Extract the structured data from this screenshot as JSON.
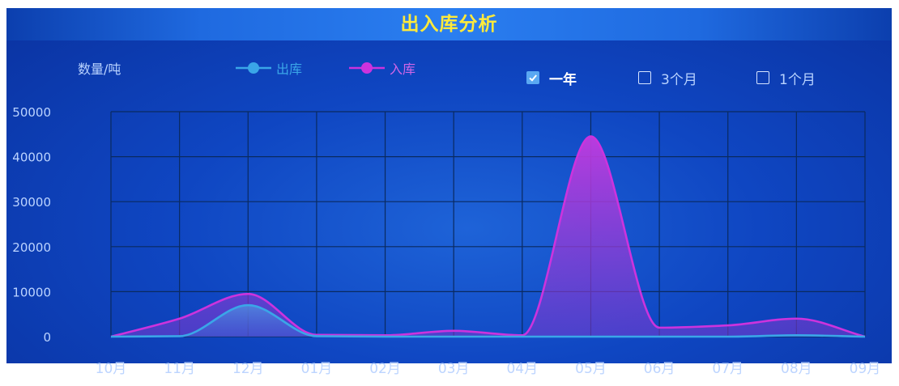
{
  "header": {
    "title": "出入库分析"
  },
  "range_options": [
    {
      "label": "一年",
      "checked": true
    },
    {
      "label": "3个月",
      "checked": false
    },
    {
      "label": "1个月",
      "checked": false
    }
  ],
  "colors": {
    "out": "#3aa6e8",
    "in": "#cc33dd",
    "grid": "#0a2a60",
    "axis_text": "#bcd4ff"
  },
  "chart_data": {
    "type": "area",
    "title": "出入库分析",
    "ylabel": "数量/吨",
    "xlabel": "",
    "categories": [
      "10月",
      "11月",
      "12月",
      "01月",
      "02月",
      "03月",
      "04月",
      "05月",
      "06月",
      "07月",
      "08月",
      "09月"
    ],
    "ylim": [
      0,
      50000
    ],
    "yticks": [
      0,
      10000,
      20000,
      30000,
      40000,
      50000
    ],
    "grid": true,
    "legend_position": "top-center",
    "series": [
      {
        "name": "出库",
        "values": [
          0,
          100,
          7000,
          100,
          0,
          0,
          0,
          0,
          0,
          0,
          300,
          0
        ]
      },
      {
        "name": "入库",
        "values": [
          0,
          4000,
          9500,
          400,
          300,
          1300,
          300,
          44500,
          2000,
          2500,
          4000,
          0
        ]
      }
    ]
  }
}
